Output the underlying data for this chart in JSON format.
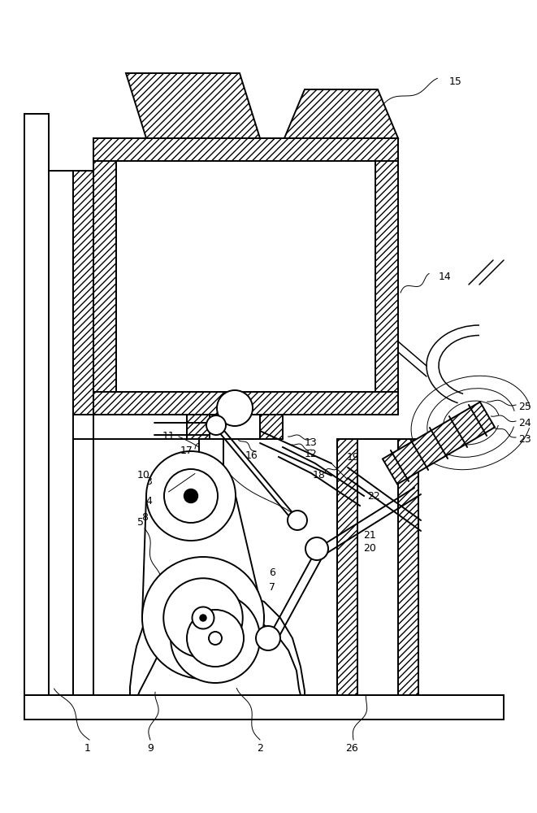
{
  "bg_color": "#ffffff",
  "lc": "#000000",
  "fig_w": 6.61,
  "fig_h": 10.0,
  "dpi": 100,
  "lw": 1.4,
  "lw2": 1.1,
  "lw_thin": 0.7
}
